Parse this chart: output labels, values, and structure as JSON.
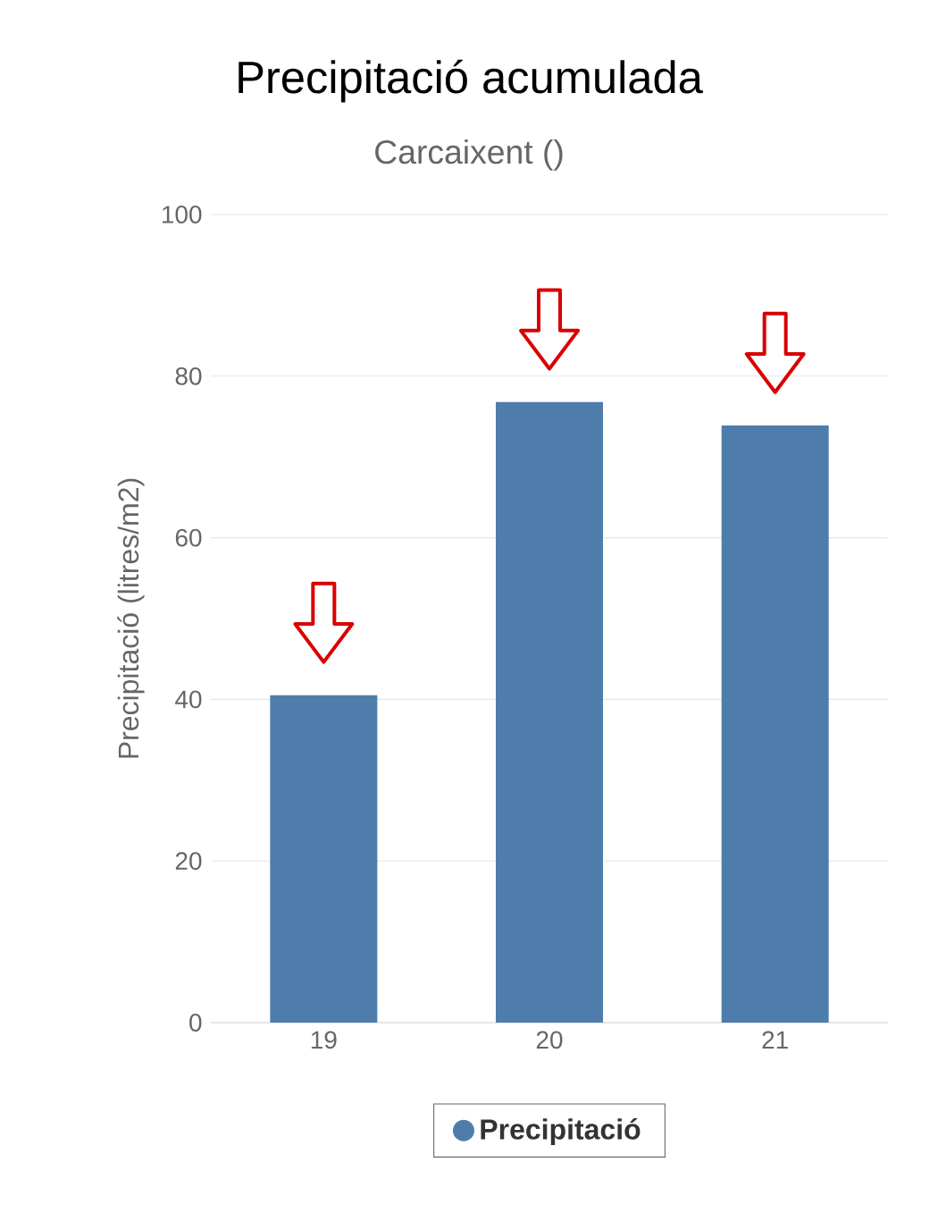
{
  "chart_data": {
    "type": "bar",
    "title": "Precipitació acumulada",
    "subtitle": "Carcaixent ()",
    "ylabel": "Precipitació (litres/m2)",
    "categories": [
      "19",
      "20",
      "21"
    ],
    "series": [
      {
        "name": "Precipitació",
        "color": "#4f7dab",
        "values": [
          40.5,
          76.8,
          73.9
        ]
      }
    ],
    "ylim": [
      0,
      100
    ],
    "yticks": [
      0,
      20,
      40,
      60,
      80,
      100
    ],
    "grid": "y",
    "legend": "bottom"
  }
}
